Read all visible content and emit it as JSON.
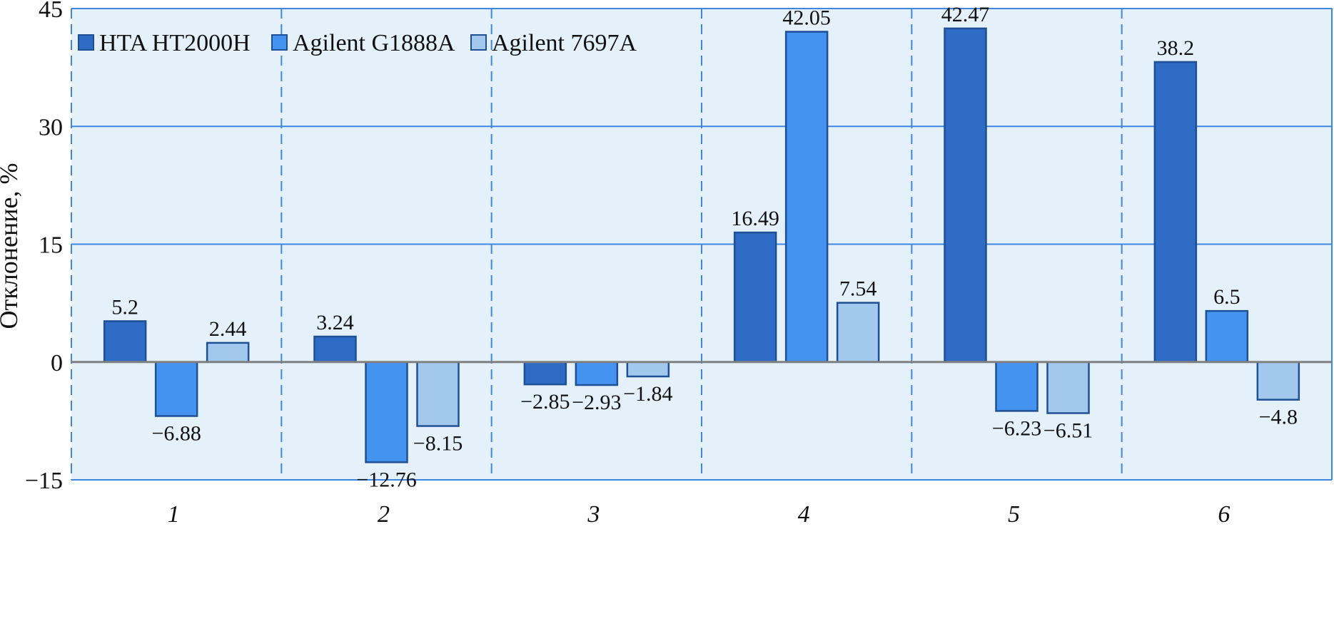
{
  "chart_data": {
    "type": "bar",
    "ylabel": "Отклонение, %",
    "xlabel": "",
    "categories": [
      "1",
      "2",
      "3",
      "4",
      "5",
      "6"
    ],
    "ylim": [
      -15,
      45
    ],
    "yticks": [
      -15,
      0,
      15,
      30,
      45
    ],
    "y_tick_labels": [
      "−15",
      "0",
      "15",
      "30",
      "45"
    ],
    "grid": true,
    "legend_position": "top-left",
    "series": [
      {
        "name": "HTA HT2000H",
        "color": "#2d6bc4",
        "values": [
          5.2,
          3.24,
          -2.85,
          16.49,
          42.47,
          38.2
        ],
        "labels": [
          "5.2",
          "3.24",
          "−2.85",
          "16.49",
          "42.47",
          "38.2"
        ]
      },
      {
        "name": "Agilent G1888A",
        "color": "#4593f0",
        "values": [
          -6.88,
          -12.76,
          -2.93,
          42.05,
          -6.23,
          6.5
        ],
        "labels": [
          "−6.88",
          "−12.76",
          "−2.93",
          "42.05",
          "−6.23",
          "6.5"
        ]
      },
      {
        "name": "Agilent 7697A",
        "color": "#a3c8ee",
        "values": [
          2.44,
          -8.15,
          -1.84,
          7.54,
          -6.51,
          -4.8
        ],
        "labels": [
          "2.44",
          "−8.15",
          "−1.84",
          "7.54",
          "−6.51",
          "−4.8"
        ]
      }
    ],
    "colors": {
      "plot_background": "#e4f1fa",
      "grid": "#3f86e0",
      "zero_line": "#808080",
      "bar_border": "#1f4f95"
    }
  }
}
